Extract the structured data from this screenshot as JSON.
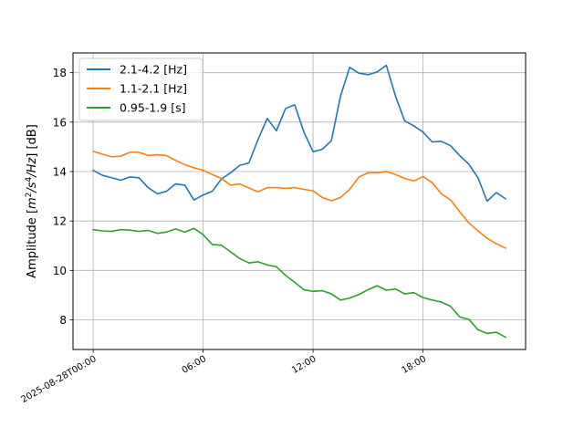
{
  "chart_data": {
    "type": "line",
    "title": "",
    "xlabel": "",
    "ylabel": "Amplitude [m²/s⁴/Hz] [dB]",
    "ylabel_parts": {
      "prefix": "Amplitude [",
      "m": "m",
      "exp2": "2",
      "s": "/s",
      "exp4": "4",
      "hz": "/Hz",
      "suffix": "] [dB]"
    },
    "x_unit": "hours since 2025-08-28T00:00",
    "xlim": [
      -1.1,
      23.6
    ],
    "ylim": [
      6.8,
      18.8
    ],
    "grid": true,
    "legend_position": "upper-left",
    "x_ticks": [
      {
        "value": 0,
        "label": "2025-08-28T00:00"
      },
      {
        "value": 6,
        "label": "06:00"
      },
      {
        "value": 12,
        "label": "12:00"
      },
      {
        "value": 18,
        "label": "18:00"
      }
    ],
    "y_ticks": [
      {
        "value": 8,
        "label": "8"
      },
      {
        "value": 10,
        "label": "10"
      },
      {
        "value": 12,
        "label": "12"
      },
      {
        "value": 14,
        "label": "14"
      },
      {
        "value": 16,
        "label": "16"
      },
      {
        "value": 18,
        "label": "18"
      }
    ],
    "x": [
      0,
      0.5,
      1,
      1.5,
      2,
      2.5,
      3,
      3.5,
      4,
      4.5,
      5,
      5.5,
      6,
      6.5,
      7,
      7.5,
      8,
      8.5,
      9,
      9.5,
      10,
      10.5,
      11,
      11.5,
      12,
      12.5,
      13,
      13.5,
      14,
      14.5,
      15,
      15.5,
      16,
      16.5,
      17,
      17.5,
      18,
      18.5,
      19,
      19.5,
      20,
      20.5,
      21,
      21.5,
      22,
      22.5
    ],
    "series": [
      {
        "name": "2.1-4.2 [Hz]",
        "color": "#1f77b4",
        "values": [
          14.05,
          13.85,
          13.75,
          13.65,
          13.78,
          13.75,
          13.35,
          13.1,
          13.2,
          13.5,
          13.45,
          12.85,
          13.05,
          13.2,
          13.7,
          13.95,
          14.25,
          14.35,
          15.3,
          16.15,
          15.65,
          16.55,
          16.7,
          15.6,
          14.8,
          14.9,
          15.25,
          17.05,
          18.22,
          17.98,
          17.92,
          18.03,
          18.3,
          17.05,
          16.05,
          15.85,
          15.6,
          15.2,
          15.22,
          15.05,
          14.65,
          14.3,
          13.75,
          12.8,
          13.15,
          12.9
        ]
      },
      {
        "name": "1.1-2.1 [Hz]",
        "color": "#ff7f0e",
        "values": [
          14.82,
          14.7,
          14.6,
          14.62,
          14.78,
          14.78,
          14.65,
          14.68,
          14.65,
          14.45,
          14.28,
          14.15,
          14.05,
          13.88,
          13.72,
          13.45,
          13.5,
          13.33,
          13.18,
          13.35,
          13.35,
          13.32,
          13.35,
          13.28,
          13.22,
          12.95,
          12.82,
          12.95,
          13.28,
          13.78,
          13.95,
          13.95,
          14.0,
          13.88,
          13.72,
          13.62,
          13.8,
          13.55,
          13.1,
          12.85,
          12.38,
          11.92,
          11.6,
          11.3,
          11.08,
          10.9
        ]
      },
      {
        "name": "0.95-1.9 [s]",
        "color": "#2ca02c",
        "values": [
          11.65,
          11.6,
          11.58,
          11.65,
          11.63,
          11.58,
          11.62,
          11.5,
          11.55,
          11.68,
          11.55,
          11.7,
          11.45,
          11.05,
          11.02,
          10.75,
          10.48,
          10.3,
          10.35,
          10.22,
          10.15,
          9.8,
          9.52,
          9.22,
          9.15,
          9.18,
          9.05,
          8.8,
          8.88,
          9.02,
          9.22,
          9.38,
          9.2,
          9.25,
          9.05,
          9.1,
          8.9,
          8.8,
          8.72,
          8.55,
          8.12,
          8.02,
          7.6,
          7.45,
          7.5,
          7.3
        ]
      }
    ]
  }
}
